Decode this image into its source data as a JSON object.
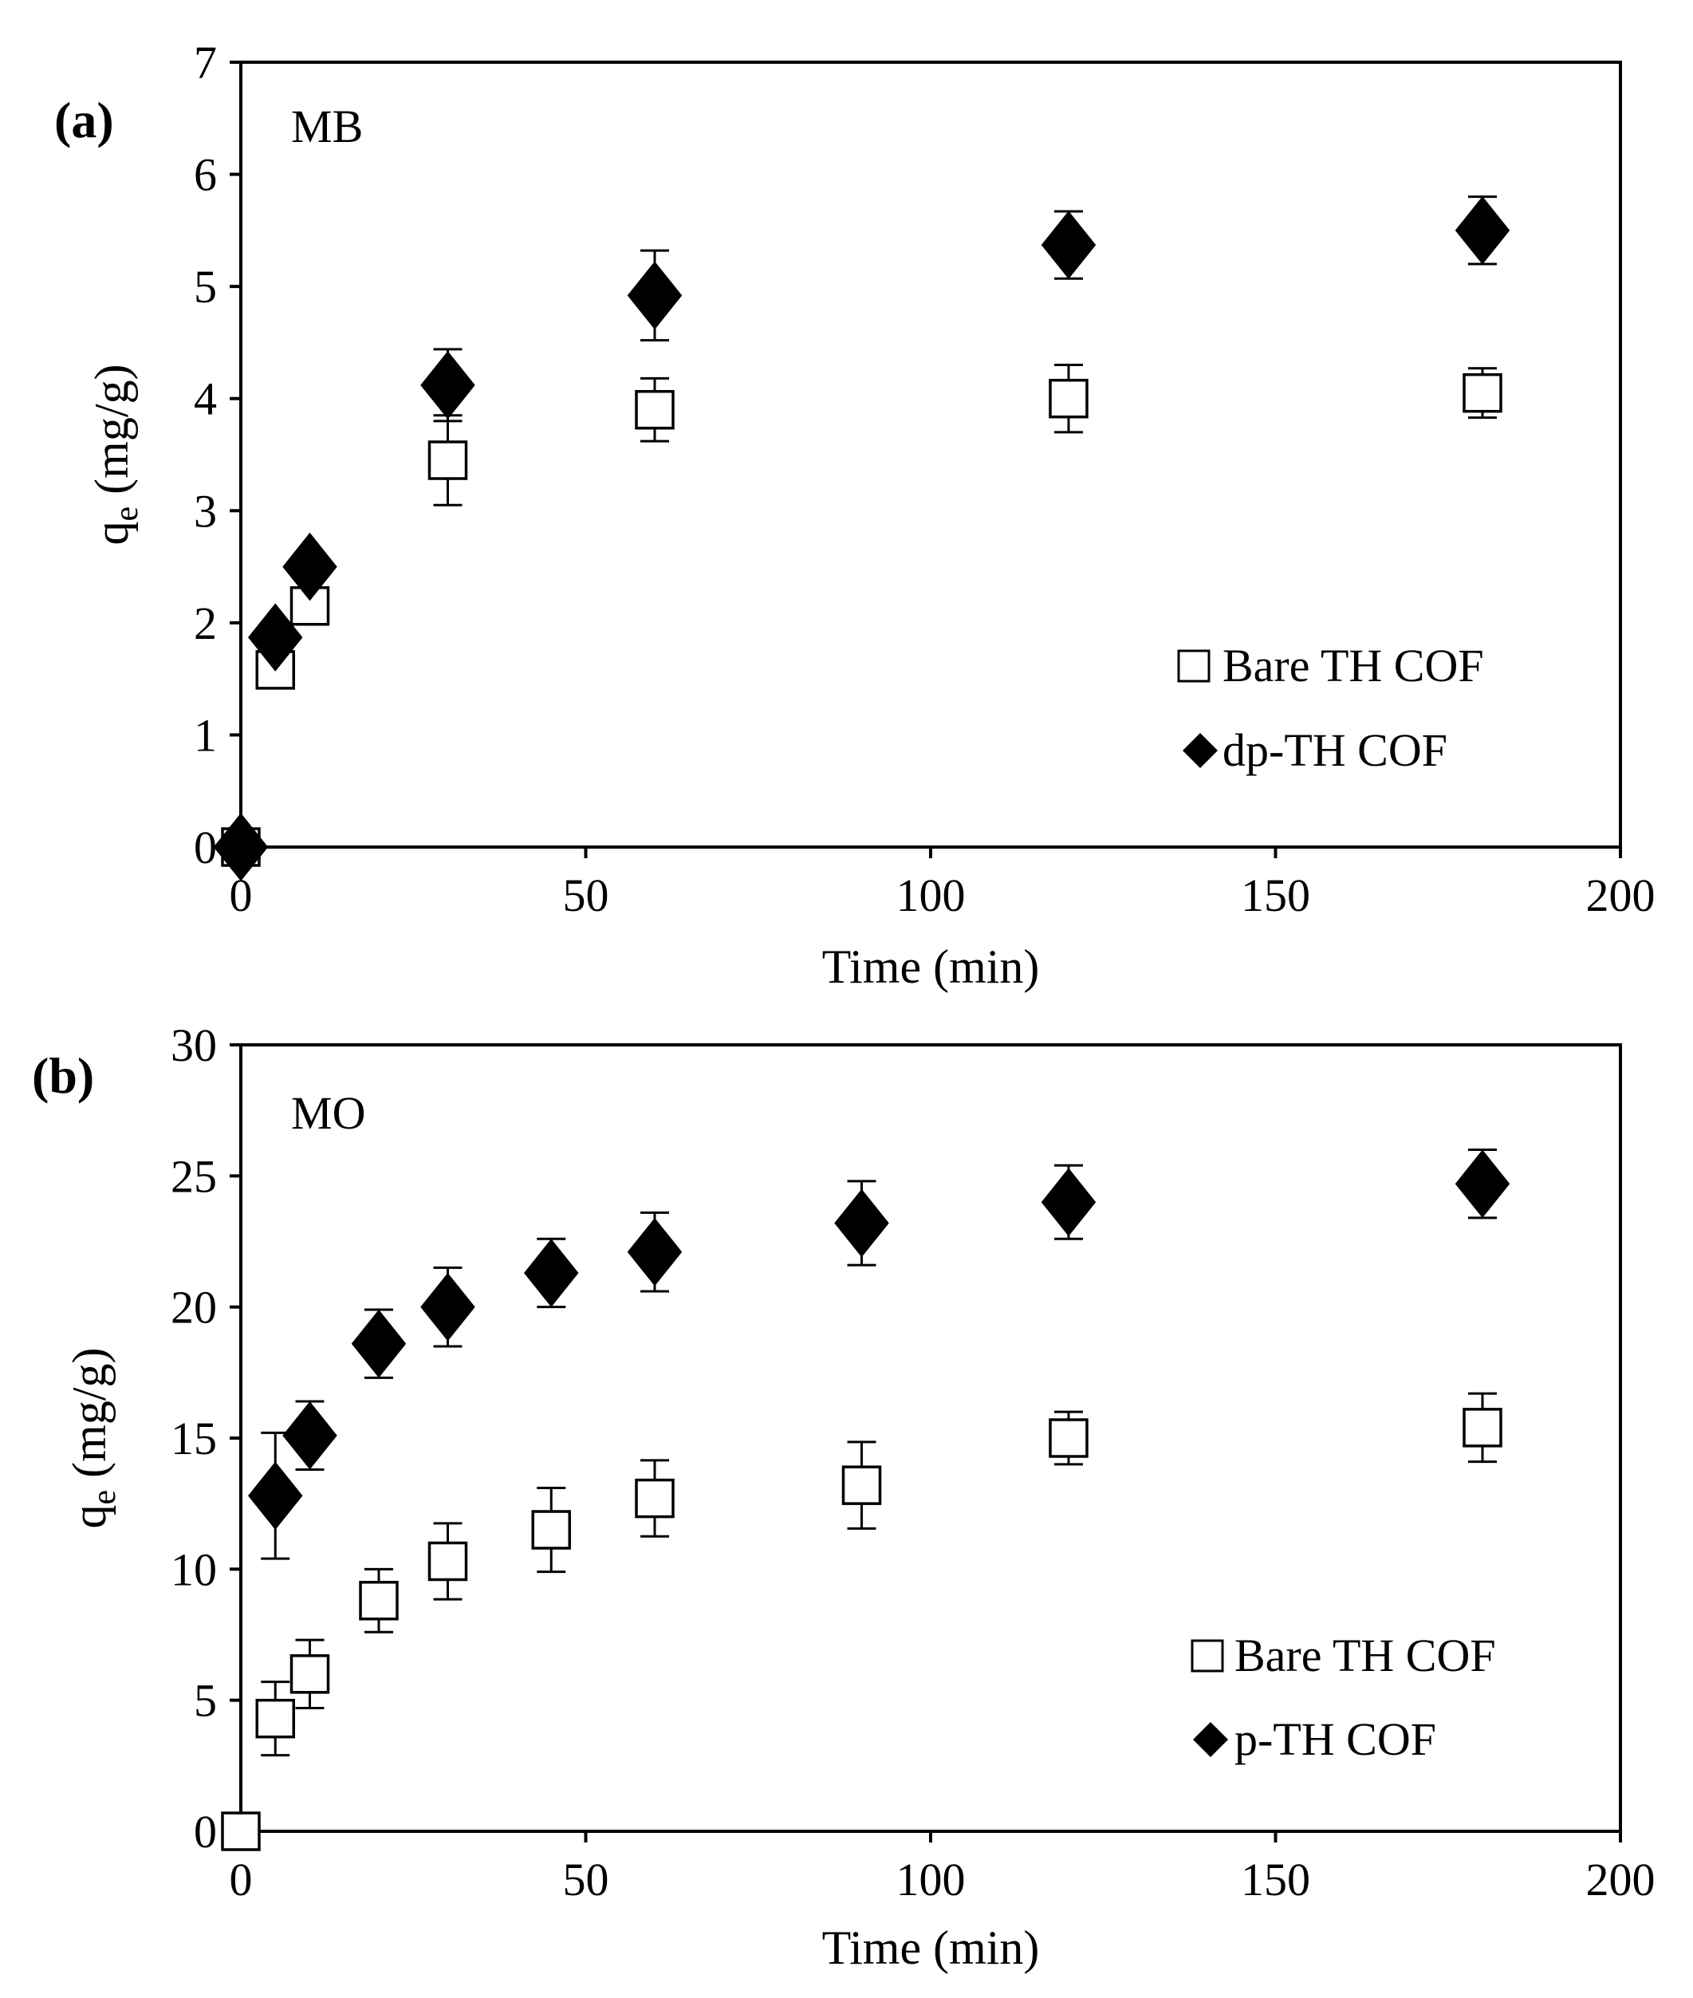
{
  "chart_data": [
    {
      "type": "scatter",
      "panel_label": "(a)",
      "annotation": "MB",
      "xlabel": "Time (min)",
      "ylabel_main": "q",
      "ylabel_sub": "e",
      "ylabel_unit": " (mg/g)",
      "xlim": [
        0,
        200
      ],
      "ylim": [
        0,
        7
      ],
      "xticks": [
        0,
        50,
        100,
        150,
        200
      ],
      "yticks": [
        0,
        1,
        2,
        3,
        4,
        5,
        6,
        7
      ],
      "legend_position": "bottom-right",
      "series": [
        {
          "name": "Bare TH COF",
          "marker": "open-square",
          "x": [
            0,
            5,
            10,
            30,
            60,
            120,
            180
          ],
          "y": [
            0,
            1.58,
            2.15,
            3.45,
            3.9,
            4.0,
            4.05
          ],
          "error": [
            0,
            0.13,
            0.1,
            0.4,
            0.28,
            0.3,
            0.22
          ]
        },
        {
          "name": "dp-TH COF",
          "marker": "filled-diamond",
          "x": [
            0,
            5,
            10,
            30,
            60,
            120,
            180
          ],
          "y": [
            0,
            1.87,
            2.5,
            4.12,
            4.92,
            5.37,
            5.5
          ],
          "error": [
            0,
            0,
            0,
            0.32,
            0.4,
            0.3,
            0.3
          ]
        }
      ]
    },
    {
      "type": "scatter",
      "panel_label": "(b)",
      "annotation": "MO",
      "xlabel": "Time (min)",
      "ylabel_main": "q",
      "ylabel_sub": "e",
      "ylabel_unit": " (mg/g)",
      "xlim": [
        0,
        200
      ],
      "ylim": [
        0,
        30
      ],
      "xticks": [
        0,
        50,
        100,
        150,
        200
      ],
      "yticks": [
        0,
        5,
        10,
        15,
        20,
        25,
        30
      ],
      "legend_position": "bottom-right",
      "series": [
        {
          "name": "Bare TH COF",
          "marker": "open-square",
          "x": [
            0,
            5,
            10,
            20,
            30,
            45,
            60,
            90,
            120,
            180
          ],
          "y": [
            0,
            4.3,
            6.0,
            8.8,
            10.3,
            11.5,
            12.7,
            13.2,
            15.0,
            15.4
          ],
          "error": [
            0,
            1.4,
            1.3,
            1.2,
            1.45,
            1.6,
            1.45,
            1.65,
            1.0,
            1.3
          ]
        },
        {
          "name": "p-TH COF",
          "marker": "filled-diamond",
          "x": [
            5,
            10,
            20,
            30,
            45,
            60,
            90,
            120,
            180
          ],
          "y": [
            12.8,
            15.1,
            18.6,
            20.0,
            21.3,
            22.1,
            23.2,
            24.0,
            24.7
          ],
          "error": [
            2.4,
            1.3,
            1.3,
            1.5,
            1.3,
            1.5,
            1.6,
            1.4,
            1.3
          ]
        }
      ]
    }
  ]
}
